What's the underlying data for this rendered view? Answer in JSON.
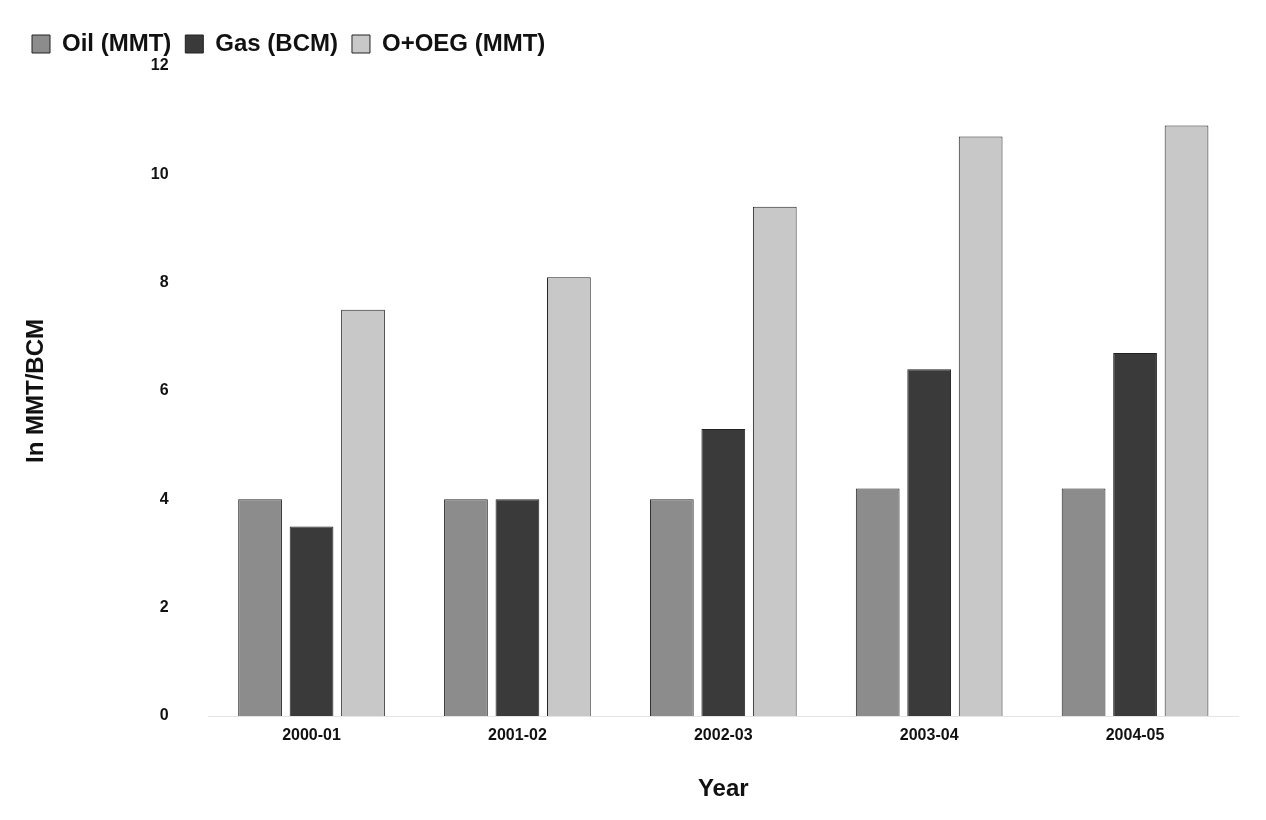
{
  "chart_data": {
    "type": "bar",
    "xlabel": "Year",
    "ylabel": "In MMT/BCM",
    "categories": [
      "2000-01",
      "2001-02",
      "2002-03",
      "2003-04",
      "2004-05"
    ],
    "series": [
      {
        "name": "Oil (MMT)",
        "color": "#8c8c8c",
        "values": [
          4.0,
          4.0,
          4.0,
          4.2,
          4.2
        ]
      },
      {
        "name": "Gas (BCM)",
        "color": "#3a3a3a",
        "values": [
          3.5,
          4.0,
          5.3,
          6.4,
          6.7
        ]
      },
      {
        "name": "O+OEG (MMT)",
        "color": "#c8c8c8",
        "values": [
          7.5,
          8.1,
          9.4,
          10.7,
          10.9
        ]
      }
    ],
    "ylim": [
      0,
      12
    ],
    "yticks": [
      0,
      2,
      4,
      6,
      8,
      10,
      12
    ],
    "grid": false,
    "legend": "top left"
  }
}
